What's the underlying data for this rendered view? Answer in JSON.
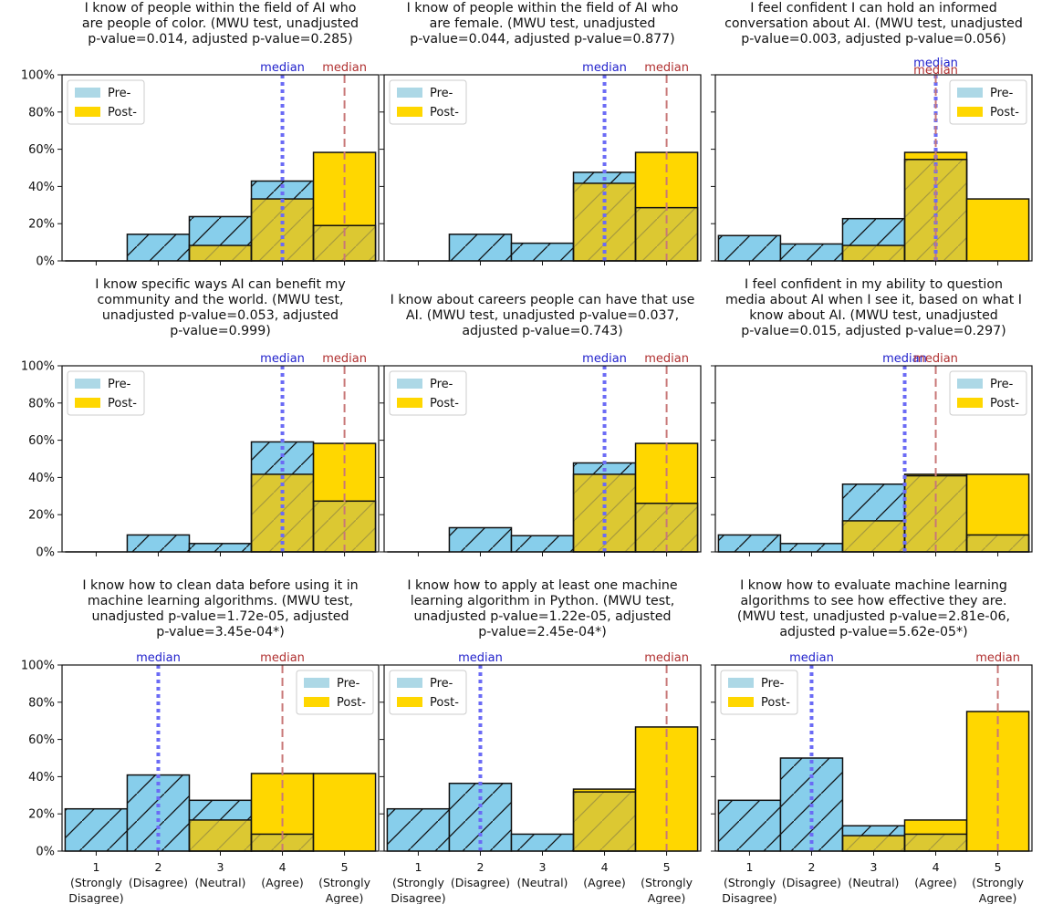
{
  "legend": {
    "pre": "Pre-",
    "post": "Post-"
  },
  "median_label": "median",
  "y_ticks": [
    "0%",
    "20%",
    "40%",
    "60%",
    "80%",
    "100%"
  ],
  "x_categories": [
    [
      "1",
      "(Strongly",
      "Disagree)"
    ],
    [
      "2",
      "(Disagree)"
    ],
    [
      "3",
      "(Neutral)"
    ],
    [
      "4",
      "(Agree)"
    ],
    [
      "5",
      "(Strongly",
      "Agree)"
    ]
  ],
  "colors": {
    "pre": "#87ceeb",
    "post": "#ffd700",
    "overlap": "#dcc832",
    "median_pre": "#6b6bf5",
    "median_post": "#c87878",
    "median_pre_label": "#2222cc",
    "median_post_label": "#b03030"
  },
  "chart_data": [
    {
      "type": "bar",
      "title_lines": [
        "I know of people within the field of AI who",
        "are people of color. (MWU test, unadjusted",
        "p-value=0.014, adjusted p-value=0.285)"
      ],
      "categories": [
        1,
        2,
        3,
        4,
        5
      ],
      "series": [
        {
          "name": "Pre-",
          "values": [
            0,
            14.3,
            23.8,
            42.9,
            19.0
          ]
        },
        {
          "name": "Post-",
          "values": [
            0,
            0,
            8.3,
            33.3,
            58.3
          ]
        }
      ],
      "medians": {
        "pre": 4,
        "post": 5
      },
      "ylim": [
        0,
        100
      ],
      "legend_position": "upper-left"
    },
    {
      "type": "bar",
      "title_lines": [
        "I know of people within the field of AI who",
        "are female. (MWU test, unadjusted",
        "p-value=0.044, adjusted p-value=0.877)"
      ],
      "categories": [
        1,
        2,
        3,
        4,
        5
      ],
      "series": [
        {
          "name": "Pre-",
          "values": [
            0,
            14.3,
            9.5,
            47.6,
            28.6
          ]
        },
        {
          "name": "Post-",
          "values": [
            0,
            0,
            0,
            41.7,
            58.3
          ]
        }
      ],
      "medians": {
        "pre": 4,
        "post": 5
      },
      "ylim": [
        0,
        100
      ],
      "legend_position": "upper-left"
    },
    {
      "type": "bar",
      "title_lines": [
        "I feel confident I can hold an informed",
        "conversation about AI. (MWU test, unadjusted",
        "p-value=0.003, adjusted p-value=0.056)"
      ],
      "categories": [
        1,
        2,
        3,
        4,
        5
      ],
      "series": [
        {
          "name": "Pre-",
          "values": [
            13.6,
            9.1,
            22.7,
            54.5,
            0
          ]
        },
        {
          "name": "Post-",
          "values": [
            0,
            0,
            8.3,
            58.3,
            33.3
          ]
        }
      ],
      "medians": {
        "pre": 4,
        "post": 4
      },
      "ylim": [
        0,
        100
      ],
      "legend_position": "upper-right"
    },
    {
      "type": "bar",
      "title_lines": [
        "I know specific ways AI can benefit my",
        "community and the world. (MWU test,",
        "unadjusted p-value=0.053, adjusted",
        "p-value=0.999)"
      ],
      "categories": [
        1,
        2,
        3,
        4,
        5
      ],
      "series": [
        {
          "name": "Pre-",
          "values": [
            0,
            9.1,
            4.5,
            59.1,
            27.3
          ]
        },
        {
          "name": "Post-",
          "values": [
            0,
            0,
            0,
            41.7,
            58.3
          ]
        }
      ],
      "medians": {
        "pre": 4,
        "post": 5
      },
      "ylim": [
        0,
        100
      ],
      "legend_position": "upper-left"
    },
    {
      "type": "bar",
      "title_lines": [
        "I know about careers people can have that use",
        "AI. (MWU test, unadjusted p-value=0.037,",
        "adjusted p-value=0.743)"
      ],
      "categories": [
        1,
        2,
        3,
        4,
        5
      ],
      "series": [
        {
          "name": "Pre-",
          "values": [
            0,
            13.0,
            8.7,
            47.8,
            26.1
          ]
        },
        {
          "name": "Post-",
          "values": [
            0,
            0,
            0,
            41.7,
            58.3
          ]
        }
      ],
      "medians": {
        "pre": 4,
        "post": 5
      },
      "ylim": [
        0,
        100
      ],
      "legend_position": "upper-left"
    },
    {
      "type": "bar",
      "title_lines": [
        "I feel confident in my ability to question",
        "media about AI when I see it, based on what I",
        "know about AI. (MWU test, unadjusted",
        "p-value=0.015, adjusted p-value=0.297)"
      ],
      "categories": [
        1,
        2,
        3,
        4,
        5
      ],
      "series": [
        {
          "name": "Pre-",
          "values": [
            9.1,
            4.5,
            36.4,
            40.9,
            9.1
          ]
        },
        {
          "name": "Post-",
          "values": [
            0,
            0,
            16.7,
            41.7,
            41.7
          ]
        }
      ],
      "medians": {
        "pre": 3.5,
        "post": 4
      },
      "ylim": [
        0,
        100
      ],
      "legend_position": "upper-right"
    },
    {
      "type": "bar",
      "title_lines": [
        "I know how to clean data before using it in",
        "machine learning algorithms. (MWU test,",
        "unadjusted p-value=1.72e-05, adjusted",
        "p-value=3.45e-04*)"
      ],
      "categories": [
        1,
        2,
        3,
        4,
        5
      ],
      "series": [
        {
          "name": "Pre-",
          "values": [
            22.7,
            40.9,
            27.3,
            9.1,
            0
          ]
        },
        {
          "name": "Post-",
          "values": [
            0,
            0,
            16.7,
            41.7,
            41.7
          ]
        }
      ],
      "medians": {
        "pre": 2,
        "post": 4
      },
      "ylim": [
        0,
        100
      ],
      "legend_position": "upper-right"
    },
    {
      "type": "bar",
      "title_lines": [
        "I know how to apply at least one machine",
        "learning algorithm in Python. (MWU test,",
        "unadjusted p-value=1.22e-05, adjusted",
        "p-value=2.45e-04*)"
      ],
      "categories": [
        1,
        2,
        3,
        4,
        5
      ],
      "series": [
        {
          "name": "Pre-",
          "values": [
            22.7,
            36.4,
            9.1,
            31.8,
            0
          ]
        },
        {
          "name": "Post-",
          "values": [
            0,
            0,
            0,
            33.3,
            66.7
          ]
        }
      ],
      "medians": {
        "pre": 2,
        "post": 5
      },
      "ylim": [
        0,
        100
      ],
      "legend_position": "upper-left"
    },
    {
      "type": "bar",
      "title_lines": [
        "I know how to evaluate machine learning",
        "algorithms to see how effective they are.",
        "(MWU test, unadjusted p-value=2.81e-06,",
        "adjusted p-value=5.62e-05*)"
      ],
      "categories": [
        1,
        2,
        3,
        4,
        5
      ],
      "series": [
        {
          "name": "Pre-",
          "values": [
            27.3,
            50.0,
            13.6,
            9.1,
            0
          ]
        },
        {
          "name": "Post-",
          "values": [
            0,
            0,
            8.3,
            16.7,
            75.0
          ]
        }
      ],
      "medians": {
        "pre": 2,
        "post": 5
      },
      "ylim": [
        0,
        100
      ],
      "legend_position": "upper-left"
    }
  ]
}
